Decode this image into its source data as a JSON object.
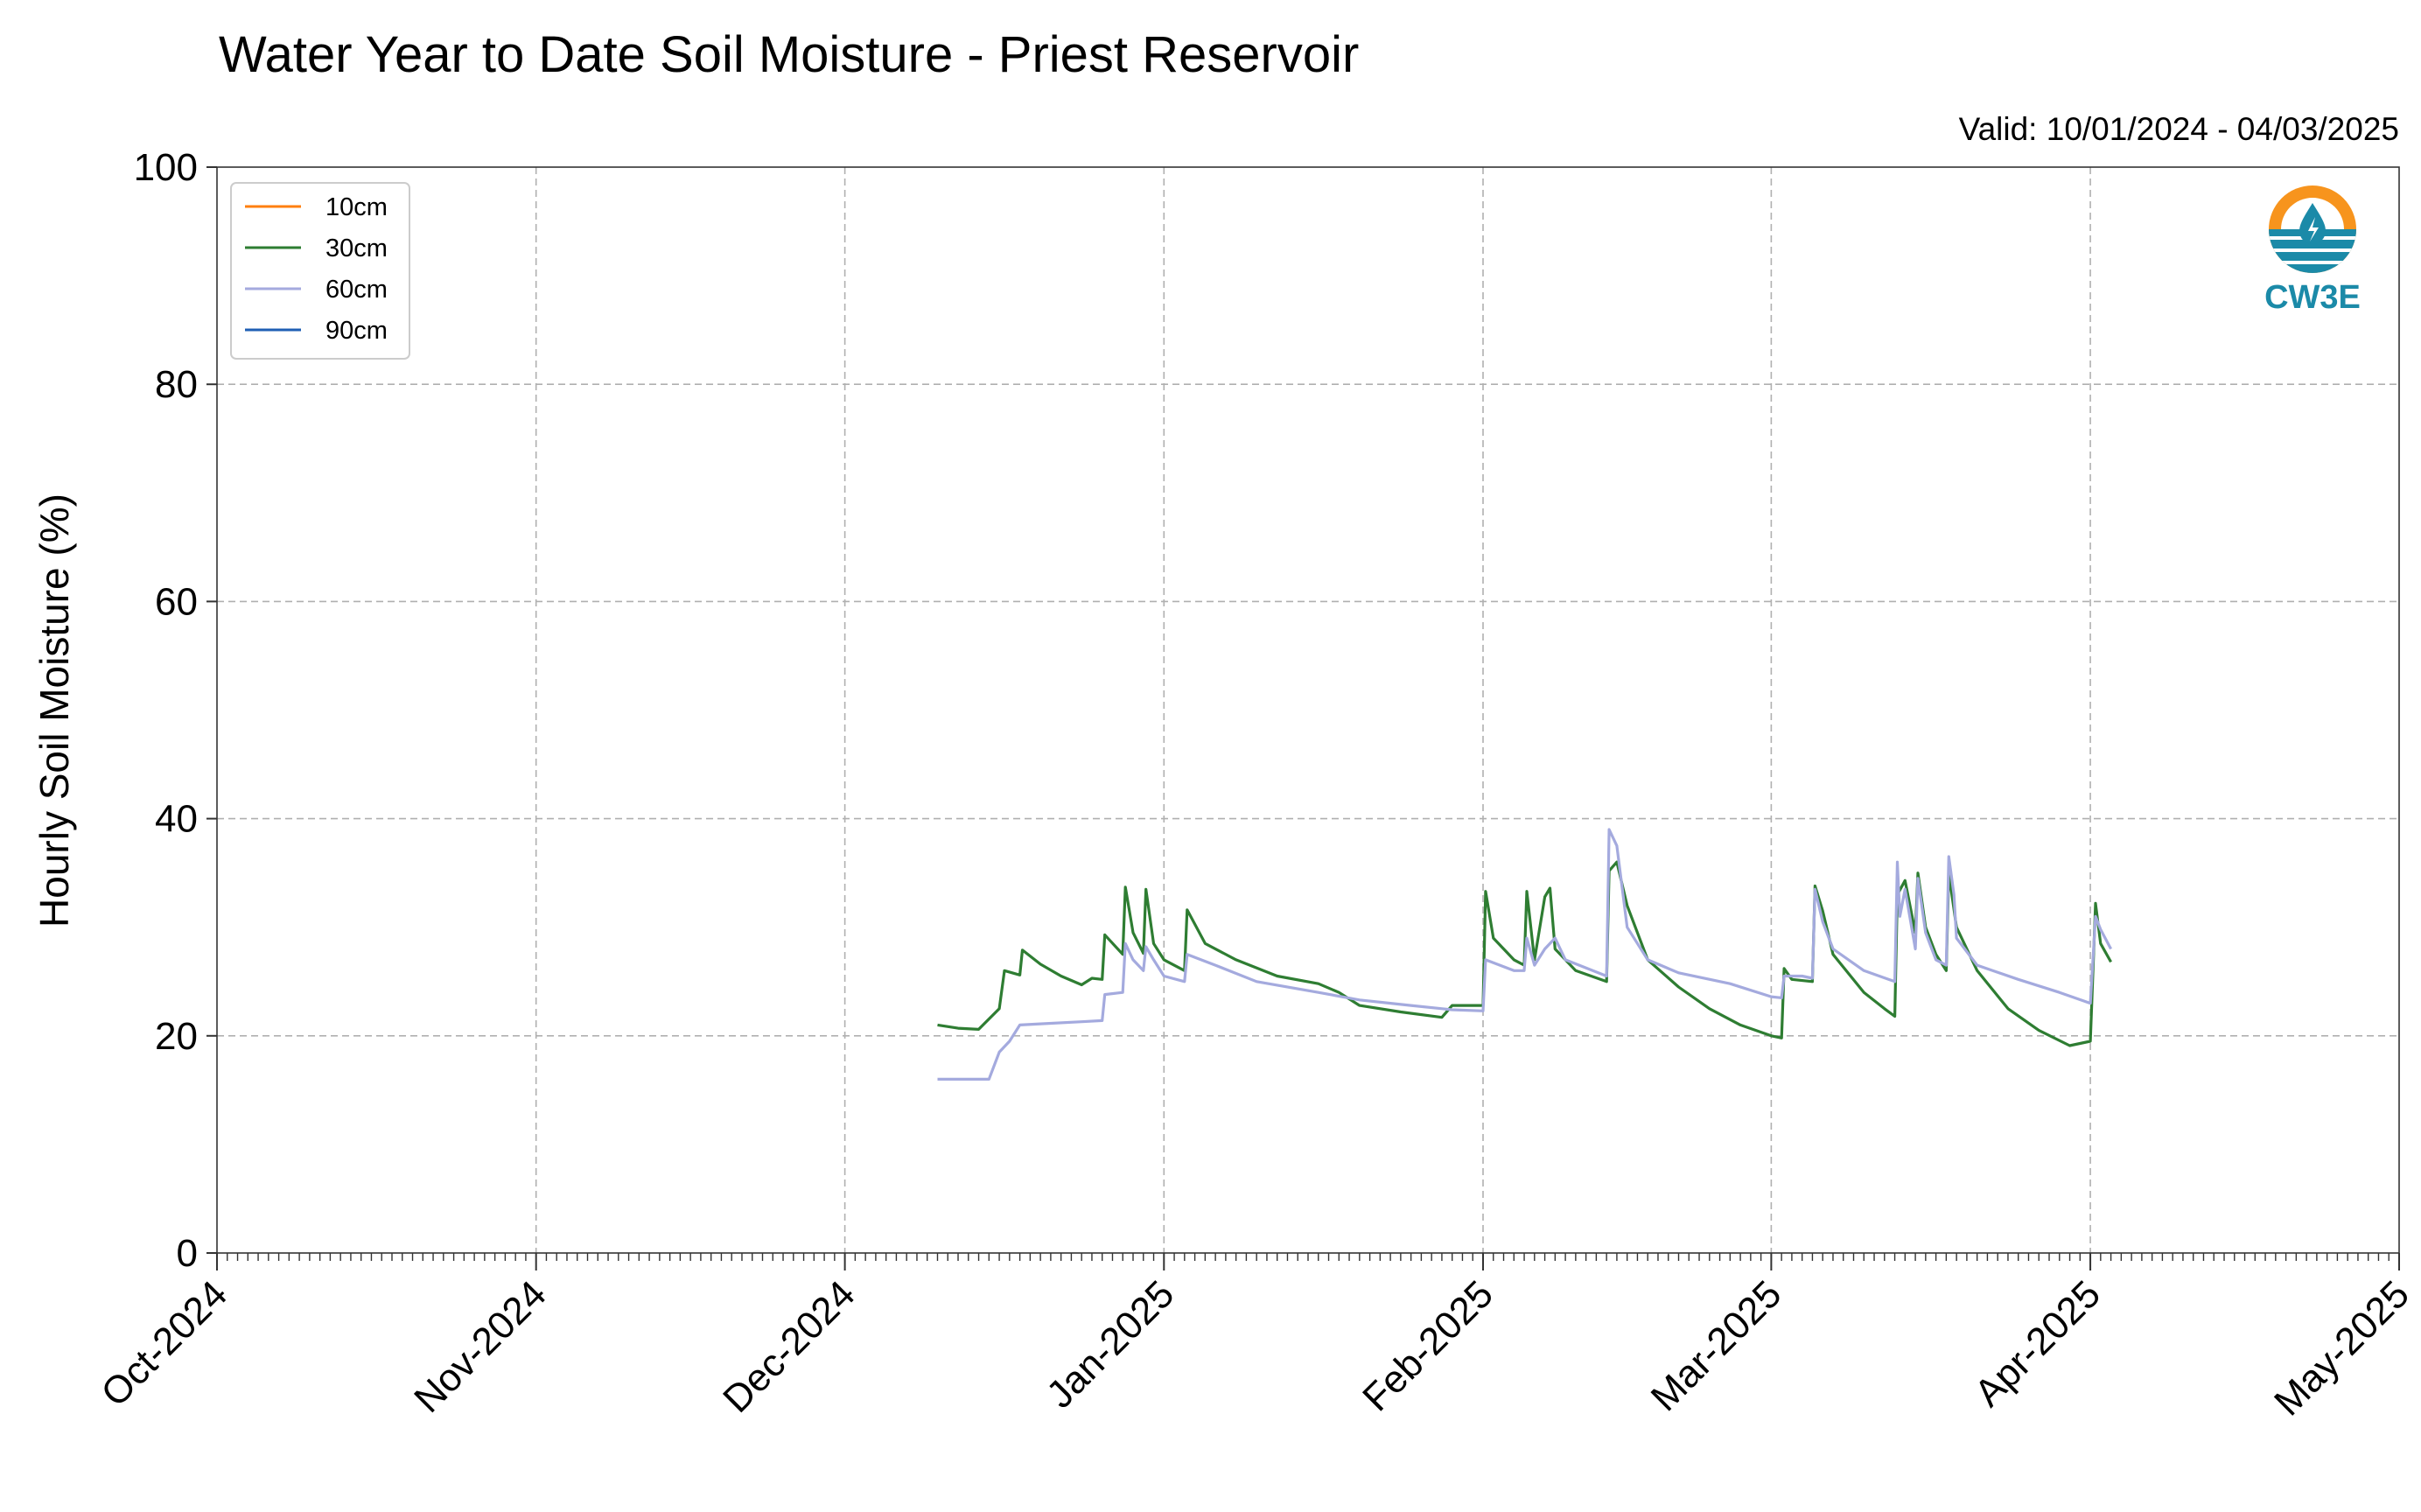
{
  "chart_data": {
    "type": "line",
    "title": "Water Year to Date Soil Moisture - Priest Reservoir",
    "subtitle": "Valid: 10/01/2024 - 04/03/2025",
    "ylabel": "Hourly Soil Moisture (%)",
    "xlabel": "",
    "ylim": [
      0,
      100
    ],
    "xlim": [
      "2024-10-01",
      "2025-05-01"
    ],
    "yticks": [
      0,
      20,
      40,
      60,
      80,
      100
    ],
    "xticks": [
      {
        "date": "2024-10-01",
        "label": "Oct-2024"
      },
      {
        "date": "2024-11-01",
        "label": "Nov-2024"
      },
      {
        "date": "2024-12-01",
        "label": "Dec-2024"
      },
      {
        "date": "2025-01-01",
        "label": "Jan-2025"
      },
      {
        "date": "2025-02-01",
        "label": "Feb-2025"
      },
      {
        "date": "2025-03-01",
        "label": "Mar-2025"
      },
      {
        "date": "2025-04-01",
        "label": "Apr-2025"
      },
      {
        "date": "2025-05-01",
        "label": "May-2025"
      }
    ],
    "grid": true,
    "legend_position": "top-left",
    "logo_text": "CW3E",
    "series": [
      {
        "name": "10cm",
        "color": "#ff7f0e",
        "points": []
      },
      {
        "name": "30cm",
        "color": "#2e7d32",
        "points": [
          [
            "2024-12-10",
            21.0
          ],
          [
            "2024-12-12",
            20.7
          ],
          [
            "2024-12-14",
            20.6
          ],
          [
            "2024-12-16",
            22.5
          ],
          [
            "2024-12-16T12",
            26.0
          ],
          [
            "2024-12-18",
            25.6
          ],
          [
            "2024-12-18T06",
            27.9
          ],
          [
            "2024-12-20",
            26.6
          ],
          [
            "2024-12-22",
            25.5
          ],
          [
            "2024-12-24",
            24.7
          ],
          [
            "2024-12-25",
            25.3
          ],
          [
            "2024-12-26",
            25.2
          ],
          [
            "2024-12-26T06",
            29.3
          ],
          [
            "2024-12-28",
            27.5
          ],
          [
            "2024-12-28T06",
            33.7
          ],
          [
            "2024-12-29",
            29.5
          ],
          [
            "2024-12-30",
            27.6
          ],
          [
            "2024-12-30T06",
            33.5
          ],
          [
            "2024-12-31",
            28.5
          ],
          [
            "2025-01-01",
            27.0
          ],
          [
            "2025-01-03",
            26.0
          ],
          [
            "2025-01-03T06",
            31.6
          ],
          [
            "2025-01-05",
            28.5
          ],
          [
            "2025-01-08",
            27.0
          ],
          [
            "2025-01-12",
            25.5
          ],
          [
            "2025-01-16",
            24.8
          ],
          [
            "2025-01-18",
            24.0
          ],
          [
            "2025-01-20",
            22.8
          ],
          [
            "2025-01-24",
            22.2
          ],
          [
            "2025-01-28",
            21.7
          ],
          [
            "2025-01-29",
            22.8
          ],
          [
            "2025-02-01",
            22.8
          ],
          [
            "2025-02-01T06",
            33.3
          ],
          [
            "2025-02-02",
            29.0
          ],
          [
            "2025-02-04",
            27.0
          ],
          [
            "2025-02-05",
            26.5
          ],
          [
            "2025-02-05T06",
            33.3
          ],
          [
            "2025-02-06",
            27.0
          ],
          [
            "2025-02-07",
            32.8
          ],
          [
            "2025-02-07T12",
            33.6
          ],
          [
            "2025-02-08",
            28.0
          ],
          [
            "2025-02-10",
            26.0
          ],
          [
            "2025-02-13",
            25.0
          ],
          [
            "2025-02-13T06",
            35.2
          ],
          [
            "2025-02-14",
            36.0
          ],
          [
            "2025-02-15",
            32.0
          ],
          [
            "2025-02-17",
            27.0
          ],
          [
            "2025-02-20",
            24.5
          ],
          [
            "2025-02-23",
            22.5
          ],
          [
            "2025-02-26",
            21.0
          ],
          [
            "2025-03-01",
            20.0
          ],
          [
            "2025-03-02",
            19.8
          ],
          [
            "2025-03-02T06",
            26.2
          ],
          [
            "2025-03-03",
            25.2
          ],
          [
            "2025-03-05",
            25.0
          ],
          [
            "2025-03-05T06",
            33.8
          ],
          [
            "2025-03-06",
            31.5
          ],
          [
            "2025-03-07",
            27.5
          ],
          [
            "2025-03-10",
            24.0
          ],
          [
            "2025-03-12",
            22.5
          ],
          [
            "2025-03-13",
            21.8
          ],
          [
            "2025-03-13T06",
            33.0
          ],
          [
            "2025-03-14",
            34.3
          ],
          [
            "2025-03-15",
            29.5
          ],
          [
            "2025-03-15T06",
            35.0
          ],
          [
            "2025-03-16",
            30.0
          ],
          [
            "2025-03-17",
            27.5
          ],
          [
            "2025-03-18",
            26.0
          ],
          [
            "2025-03-18T06",
            35.0
          ],
          [
            "2025-03-19",
            30.0
          ],
          [
            "2025-03-21",
            26.0
          ],
          [
            "2025-03-24",
            22.5
          ],
          [
            "2025-03-27",
            20.5
          ],
          [
            "2025-03-30",
            19.1
          ],
          [
            "2025-04-01",
            19.5
          ],
          [
            "2025-04-01T12",
            32.2
          ],
          [
            "2025-04-02",
            28.5
          ],
          [
            "2025-04-03",
            26.8
          ]
        ]
      },
      {
        "name": "60cm",
        "color": "#a4aade",
        "points": [
          [
            "2024-12-10",
            16.0
          ],
          [
            "2024-12-15",
            16.0
          ],
          [
            "2024-12-16",
            18.5
          ],
          [
            "2024-12-17",
            19.5
          ],
          [
            "2024-12-18",
            21.0
          ],
          [
            "2024-12-20",
            21.1
          ],
          [
            "2024-12-24",
            21.3
          ],
          [
            "2024-12-26",
            21.4
          ],
          [
            "2024-12-26T06",
            23.8
          ],
          [
            "2024-12-28",
            24.0
          ],
          [
            "2024-12-28T06",
            28.5
          ],
          [
            "2024-12-29",
            27.0
          ],
          [
            "2024-12-30",
            26.0
          ],
          [
            "2024-12-30T06",
            28.2
          ],
          [
            "2024-12-31",
            27.0
          ],
          [
            "2025-01-01",
            25.5
          ],
          [
            "2025-01-03",
            25.0
          ],
          [
            "2025-01-03T06",
            27.5
          ],
          [
            "2025-01-06",
            26.5
          ],
          [
            "2025-01-10",
            25.0
          ],
          [
            "2025-01-16",
            24.0
          ],
          [
            "2025-01-20",
            23.3
          ],
          [
            "2025-01-25",
            22.8
          ],
          [
            "2025-01-29",
            22.4
          ],
          [
            "2025-02-01",
            22.3
          ],
          [
            "2025-02-01T06",
            27.0
          ],
          [
            "2025-02-04",
            26.0
          ],
          [
            "2025-02-05",
            26.0
          ],
          [
            "2025-02-05T06",
            29.0
          ],
          [
            "2025-02-06",
            26.5
          ],
          [
            "2025-02-07",
            28.0
          ],
          [
            "2025-02-08",
            29.0
          ],
          [
            "2025-02-09",
            27.0
          ],
          [
            "2025-02-13",
            25.5
          ],
          [
            "2025-02-13T06",
            39.0
          ],
          [
            "2025-02-14",
            37.5
          ],
          [
            "2025-02-15",
            30.0
          ],
          [
            "2025-02-17",
            27.0
          ],
          [
            "2025-02-20",
            25.8
          ],
          [
            "2025-02-25",
            24.8
          ],
          [
            "2025-03-01",
            23.6
          ],
          [
            "2025-03-02",
            23.5
          ],
          [
            "2025-03-02T06",
            25.5
          ],
          [
            "2025-03-04",
            25.5
          ],
          [
            "2025-03-05",
            25.3
          ],
          [
            "2025-03-05T06",
            33.5
          ],
          [
            "2025-03-06",
            30.5
          ],
          [
            "2025-03-07",
            28.0
          ],
          [
            "2025-03-10",
            26.0
          ],
          [
            "2025-03-13",
            25.0
          ],
          [
            "2025-03-13T06",
            36.0
          ],
          [
            "2025-03-13T12",
            31.0
          ],
          [
            "2025-03-14",
            33.5
          ],
          [
            "2025-03-15",
            28.0
          ],
          [
            "2025-03-15T06",
            34.5
          ],
          [
            "2025-03-16",
            29.5
          ],
          [
            "2025-03-17",
            27.0
          ],
          [
            "2025-03-18",
            26.5
          ],
          [
            "2025-03-18T06",
            36.5
          ],
          [
            "2025-03-18T18",
            33.0
          ],
          [
            "2025-03-19",
            29.0
          ],
          [
            "2025-03-21",
            26.5
          ],
          [
            "2025-03-25",
            25.2
          ],
          [
            "2025-03-29",
            24.0
          ],
          [
            "2025-04-01",
            23.0
          ],
          [
            "2025-04-01T12",
            31.0
          ],
          [
            "2025-04-02",
            29.8
          ],
          [
            "2025-04-03",
            28.0
          ]
        ]
      },
      {
        "name": "90cm",
        "color": "#1f5fb4",
        "points": []
      }
    ]
  }
}
